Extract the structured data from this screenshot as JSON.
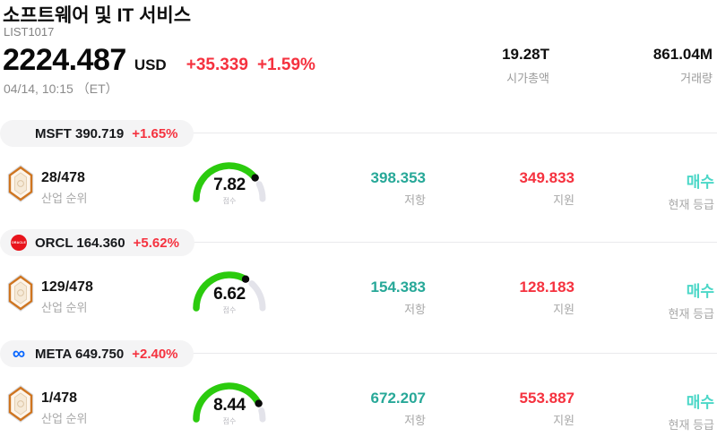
{
  "header": {
    "title": "소프트웨어 및 IT 서비스",
    "list_id": "LIST1017",
    "price": "2224.487",
    "currency": "USD",
    "change_abs": "+35.339",
    "change_pct": "+1.59%",
    "timestamp": "04/14, 10:15 （ET）",
    "stats": [
      {
        "value": "19.28T",
        "label": "시가총액"
      },
      {
        "value": "861.04M",
        "label": "거래량"
      }
    ]
  },
  "labels": {
    "rank": "산업 순위",
    "score": "점수",
    "resistance": "저항",
    "support": "지원",
    "rating": "현재 등급"
  },
  "icons": {
    "msft": "msft-logo-icon",
    "orcl": "oracle-logo-icon",
    "meta": "meta-logo-icon",
    "rank_badge": "rank-badge-icon",
    "meta_glyph": "∞",
    "oracle_logo_text": "ORACLE"
  },
  "colors": {
    "up_red": "#f5323f",
    "teal": "#27a898",
    "turquoise": "#4bd7c7",
    "gauge_green": "#2bcb0e",
    "gauge_track": "#e3e3ea",
    "gauge_dot": "#0a0a0a"
  },
  "tickers": [
    {
      "symbol": "MSFT",
      "pill_text": "MSFT 390.719",
      "change": "+1.65%",
      "rank": "28/478",
      "score": "7.82",
      "score_value": 7.82,
      "score_max": 10,
      "resistance": "398.353",
      "support": "349.833",
      "rating": "매수"
    },
    {
      "symbol": "ORCL",
      "pill_text": "ORCL 164.360",
      "change": "+5.62%",
      "rank": "129/478",
      "score": "6.62",
      "score_value": 6.62,
      "score_max": 10,
      "resistance": "154.383",
      "support": "128.183",
      "rating": "매수"
    },
    {
      "symbol": "META",
      "pill_text": "META 649.750",
      "change": "+2.40%",
      "rank": "1/478",
      "score": "8.44",
      "score_value": 8.44,
      "score_max": 10,
      "resistance": "672.207",
      "support": "553.887",
      "rating": "매수"
    }
  ]
}
